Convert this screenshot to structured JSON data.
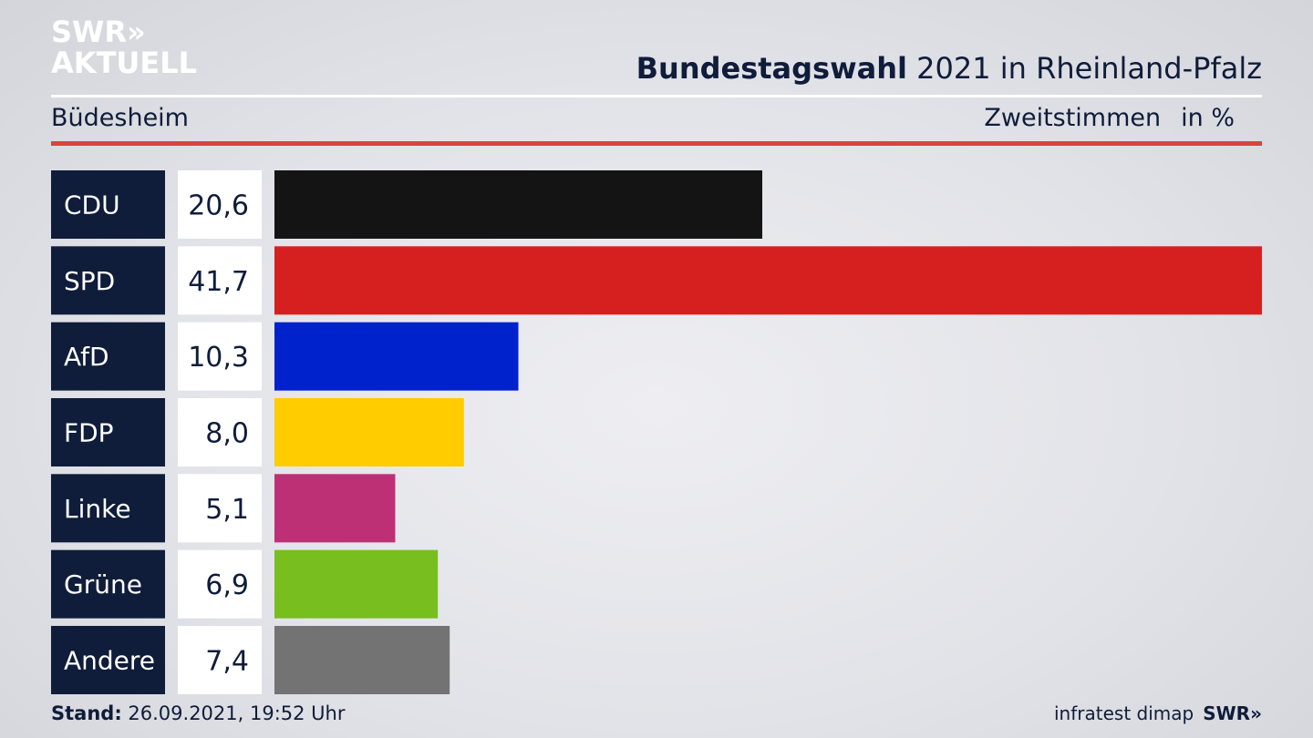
{
  "brand": {
    "line1": "SWR»",
    "line2": "AKTUELL"
  },
  "title_bold": "Bundestagswahl",
  "title_rest": " 2021 in Rheinland-Pfalz",
  "region": "Büdesheim",
  "metric": "Zweitstimmen",
  "unit": "in %",
  "footer": {
    "stand_label": "Stand:",
    "stand_value": " 26.09.2021, 19:52 Uhr",
    "source": "infratest dimap",
    "swr": "SWR»"
  },
  "colors": {
    "label_bg": "#0f1c3a",
    "value_bg": "#ffffff"
  },
  "chart_data": {
    "type": "bar",
    "categories": [
      "CDU",
      "SPD",
      "AfD",
      "FDP",
      "Linke",
      "Grüne",
      "Andere"
    ],
    "values": [
      20.6,
      41.7,
      10.3,
      8.0,
      5.1,
      6.9,
      7.4
    ],
    "value_labels": [
      "20,6",
      "41,7",
      "10,3",
      "8,0",
      "5,1",
      "6,9",
      "7,4"
    ],
    "colors": [
      "#141414",
      "#d62020",
      "#0022cc",
      "#ffcc00",
      "#be3075",
      "#78be1e",
      "#737373"
    ]
  }
}
